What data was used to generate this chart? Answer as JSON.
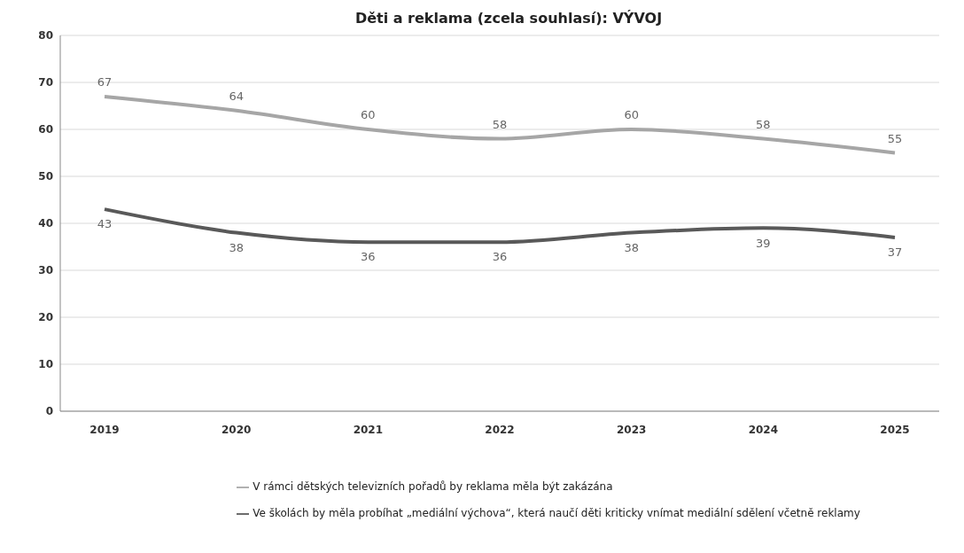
{
  "chart_data": {
    "type": "line",
    "title": "Děti a reklama (zcela souhlasí): VÝVOJ",
    "categories": [
      "2019",
      "2020",
      "2021",
      "2022",
      "2023",
      "2024",
      "2025"
    ],
    "series": [
      {
        "name": "V rámci dětských televizních pořadů by reklama měla být zakázána",
        "color": "#a6a6a6",
        "values": [
          67,
          64,
          60,
          58,
          60,
          58,
          55
        ]
      },
      {
        "name": "Ve školách by měla probíhat „mediální výchova“, která naučí děti kriticky vnímat mediální sdělení včetně reklamy",
        "color": "#595959",
        "values": [
          43,
          38,
          36,
          36,
          38,
          39,
          37
        ]
      }
    ],
    "ylim": [
      0,
      80
    ],
    "yticks": [
      0,
      10,
      20,
      30,
      40,
      50,
      60,
      70,
      80
    ],
    "grid": "y",
    "legend": "bottom",
    "data_labels": true,
    "marker": "none",
    "line_style": "solid"
  }
}
